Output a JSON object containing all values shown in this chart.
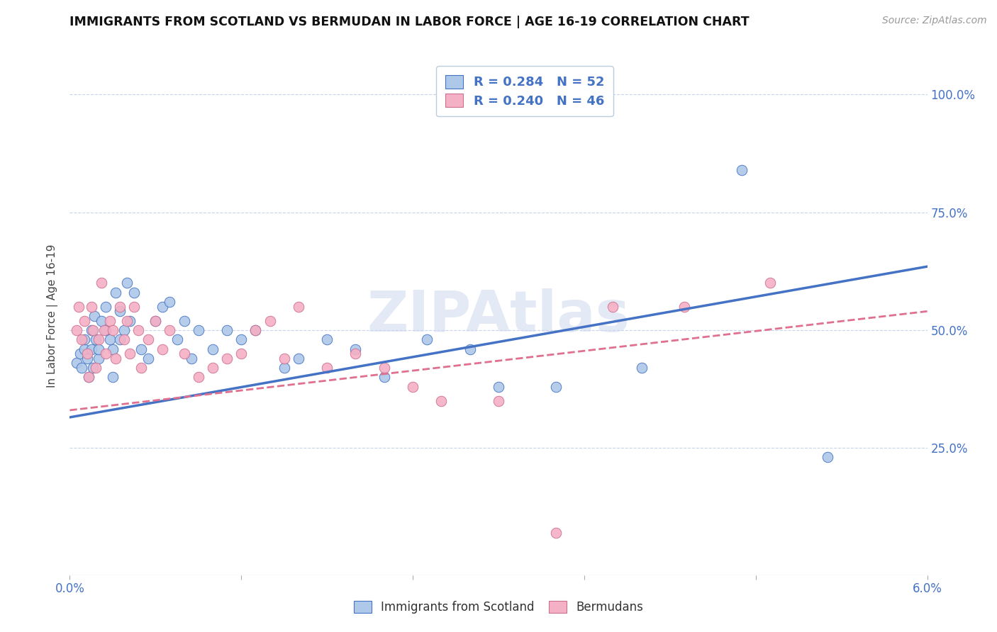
{
  "title": "IMMIGRANTS FROM SCOTLAND VS BERMUDAN IN LABOR FORCE | AGE 16-19 CORRELATION CHART",
  "source": "Source: ZipAtlas.com",
  "ylabel": "In Labor Force | Age 16-19",
  "xlim": [
    0.0,
    0.06
  ],
  "ylim": [
    -0.02,
    1.08
  ],
  "color_scotland": "#adc8e8",
  "color_bermuda": "#f4b0c4",
  "line_color_scotland": "#4472c4",
  "line_color_bermuda": "#e07090",
  "watermark": "ZIPAtlas",
  "sc_x": [
    0.0005,
    0.0007,
    0.0008,
    0.001,
    0.001,
    0.0012,
    0.0013,
    0.0015,
    0.0015,
    0.0016,
    0.0017,
    0.0018,
    0.002,
    0.002,
    0.0022,
    0.0025,
    0.0025,
    0.0028,
    0.003,
    0.003,
    0.0032,
    0.0035,
    0.0035,
    0.0038,
    0.004,
    0.0042,
    0.0045,
    0.005,
    0.0055,
    0.006,
    0.0065,
    0.007,
    0.0075,
    0.008,
    0.0085,
    0.009,
    0.01,
    0.011,
    0.012,
    0.013,
    0.015,
    0.016,
    0.018,
    0.02,
    0.022,
    0.025,
    0.028,
    0.03,
    0.034,
    0.04,
    0.047,
    0.053
  ],
  "sc_y": [
    0.43,
    0.45,
    0.42,
    0.46,
    0.48,
    0.44,
    0.4,
    0.5,
    0.46,
    0.42,
    0.53,
    0.48,
    0.44,
    0.46,
    0.52,
    0.55,
    0.5,
    0.48,
    0.46,
    0.4,
    0.58,
    0.54,
    0.48,
    0.5,
    0.6,
    0.52,
    0.58,
    0.46,
    0.44,
    0.52,
    0.55,
    0.56,
    0.48,
    0.52,
    0.44,
    0.5,
    0.46,
    0.5,
    0.48,
    0.5,
    0.42,
    0.44,
    0.48,
    0.46,
    0.4,
    0.48,
    0.46,
    0.38,
    0.38,
    0.42,
    0.84,
    0.23
  ],
  "bm_x": [
    0.0005,
    0.0006,
    0.0008,
    0.001,
    0.0012,
    0.0013,
    0.0015,
    0.0016,
    0.0018,
    0.002,
    0.0022,
    0.0024,
    0.0025,
    0.0028,
    0.003,
    0.0032,
    0.0035,
    0.0038,
    0.004,
    0.0042,
    0.0045,
    0.0048,
    0.005,
    0.0055,
    0.006,
    0.0065,
    0.007,
    0.008,
    0.009,
    0.01,
    0.011,
    0.012,
    0.013,
    0.014,
    0.015,
    0.016,
    0.018,
    0.02,
    0.022,
    0.024,
    0.026,
    0.03,
    0.034,
    0.038,
    0.043,
    0.049
  ],
  "bm_y": [
    0.5,
    0.55,
    0.48,
    0.52,
    0.45,
    0.4,
    0.55,
    0.5,
    0.42,
    0.48,
    0.6,
    0.5,
    0.45,
    0.52,
    0.5,
    0.44,
    0.55,
    0.48,
    0.52,
    0.45,
    0.55,
    0.5,
    0.42,
    0.48,
    0.52,
    0.46,
    0.5,
    0.45,
    0.4,
    0.42,
    0.44,
    0.45,
    0.5,
    0.52,
    0.44,
    0.55,
    0.42,
    0.45,
    0.42,
    0.38,
    0.35,
    0.35,
    0.07,
    0.55,
    0.55,
    0.6
  ],
  "sc_trend_x0": 0.0,
  "sc_trend_x1": 0.06,
  "sc_trend_y0": 0.315,
  "sc_trend_y1": 0.635,
  "bm_trend_y0": 0.33,
  "bm_trend_y1": 0.54,
  "ytick_positions": [
    0.25,
    0.5,
    0.75,
    1.0
  ],
  "ytick_labels": [
    "25.0%",
    "50.0%",
    "75.0%",
    "100.0%"
  ],
  "xtick_positions": [
    0.0,
    0.06
  ],
  "xtick_labels": [
    "0.0%",
    "6.0%"
  ]
}
